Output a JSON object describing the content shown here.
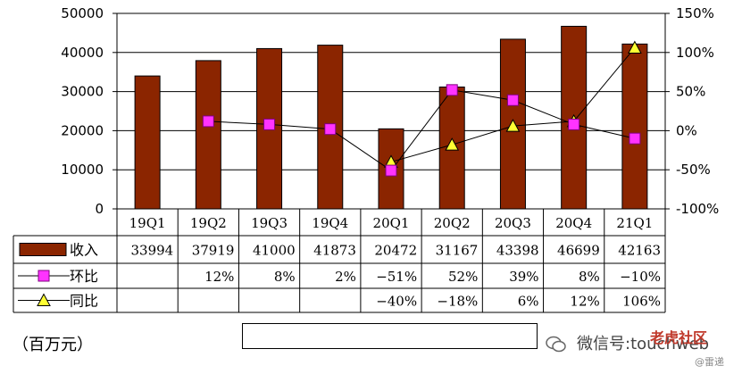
{
  "chart_data": {
    "type": "bar",
    "categories": [
      "19Q1",
      "19Q2",
      "19Q3",
      "19Q4",
      "20Q1",
      "20Q2",
      "20Q3",
      "20Q4",
      "21Q1"
    ],
    "series": [
      {
        "name": "收入",
        "type": "bar",
        "axis": "left",
        "values": [
          33994,
          37919,
          41000,
          41873,
          20472,
          31167,
          43398,
          46699,
          42163
        ],
        "labels": [
          "33994",
          "37919",
          "41000",
          "41873",
          "20472",
          "31167",
          "43398",
          "46699",
          "42163"
        ]
      },
      {
        "name": "环比",
        "type": "line",
        "axis": "right",
        "marker": "square",
        "values": [
          null,
          12,
          8,
          2,
          -51,
          52,
          39,
          8,
          -10
        ],
        "labels": [
          "",
          "12%",
          "8%",
          "2%",
          "-51%",
          "52%",
          "39%",
          "8%",
          "-10%"
        ]
      },
      {
        "name": "同比",
        "type": "line",
        "axis": "right",
        "marker": "triangle",
        "values": [
          null,
          null,
          null,
          null,
          -40,
          -18,
          6,
          12,
          106
        ],
        "labels": [
          "",
          "",
          "",
          "",
          "-40%",
          "-18%",
          "6%",
          "12%",
          "106%"
        ]
      }
    ],
    "left_axis": {
      "ylim": [
        0,
        50000
      ],
      "ticks": [
        "0",
        "10000",
        "20000",
        "30000",
        "40000",
        "50000"
      ]
    },
    "right_axis": {
      "ylim": [
        -100,
        150
      ],
      "ticks": [
        "-100%",
        "-50%",
        "0%",
        "50%",
        "100%",
        "150%"
      ]
    },
    "unit_label": "（百万元）",
    "legend_placement": "bottom",
    "grid": true,
    "colors": {
      "bar": "#8b2500",
      "qoq": "#ff33ff",
      "yoy": "#ffff33",
      "line": "#000000"
    }
  },
  "watermark": {
    "prefix": "微信号:",
    "handle": "touchweb",
    "logo": "老虎社区",
    "sub": "@雷递"
  }
}
